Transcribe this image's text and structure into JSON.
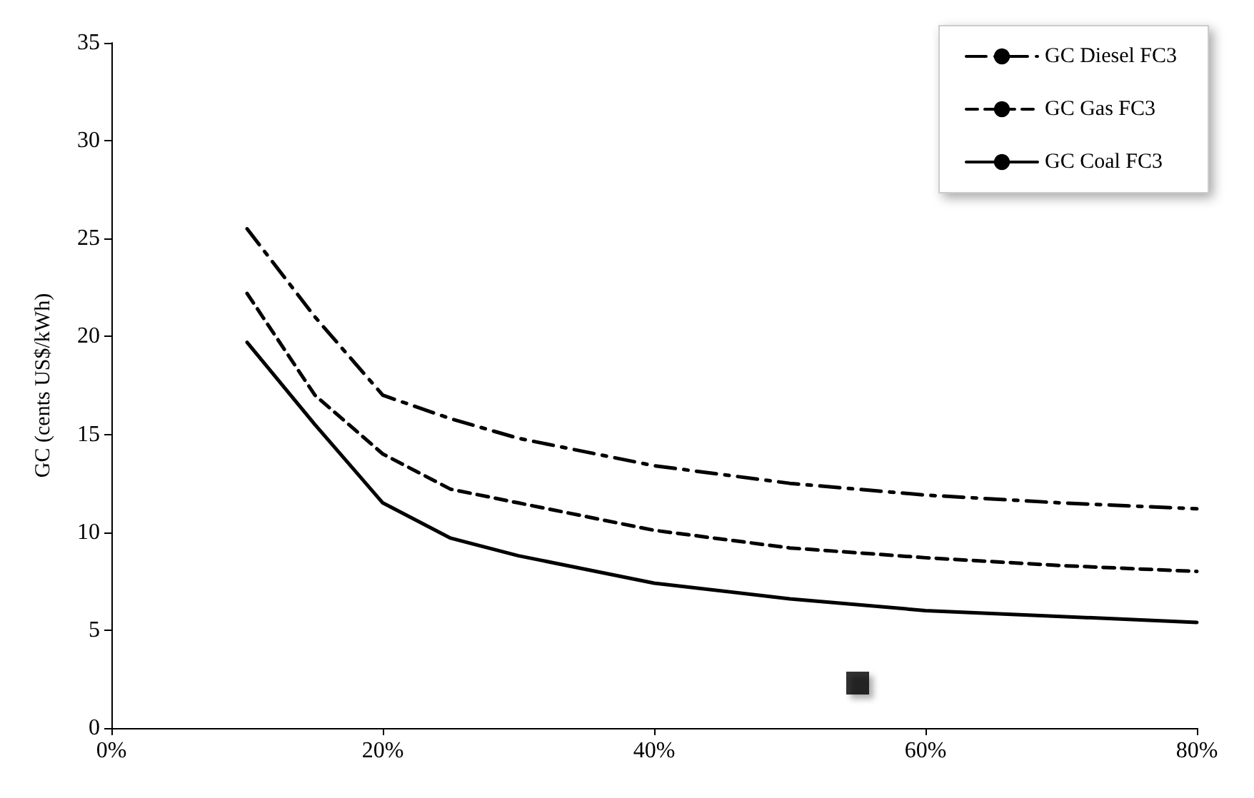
{
  "chart_data": {
    "type": "line",
    "ylabel": "GC (cents US$/kWh)",
    "xlim": [
      0,
      80
    ],
    "xticks": [
      {
        "value": 0,
        "label": "0%"
      },
      {
        "value": 20,
        "label": "20%"
      },
      {
        "value": 40,
        "label": "40%"
      },
      {
        "value": 60,
        "label": "60%"
      },
      {
        "value": 80,
        "label": "80%"
      }
    ],
    "ylim": [
      0,
      35
    ],
    "yticks": [
      0,
      5,
      10,
      15,
      20,
      25,
      30,
      35
    ],
    "x": [
      10,
      15,
      20,
      25,
      30,
      40,
      50,
      60,
      70,
      80
    ],
    "series": [
      {
        "name": "GC Diesel FC3",
        "color": "#000000",
        "line_style": "dashdot",
        "values": [
          25.5,
          21,
          17,
          15.8,
          14.8,
          13.4,
          12.5,
          11.9,
          11.5,
          11.2
        ]
      },
      {
        "name": "GC Gas FC3",
        "color": "#000000",
        "line_style": "dashed",
        "values": [
          22.2,
          17,
          14,
          12.2,
          11.5,
          10.1,
          9.2,
          8.7,
          8.3,
          8.0
        ]
      },
      {
        "name": "GC Coal FC3",
        "color": "#000000",
        "line_style": "solid",
        "values": [
          19.7,
          15.5,
          11.5,
          9.7,
          8.8,
          7.4,
          6.6,
          6.0,
          5.7,
          5.4
        ]
      },
      {
        "type": "scatter",
        "color": "#000000",
        "marker": "square",
        "x": [
          55
        ],
        "values": [
          2.3
        ]
      }
    ],
    "grid": false,
    "legend": "top right",
    "marker": "none"
  }
}
